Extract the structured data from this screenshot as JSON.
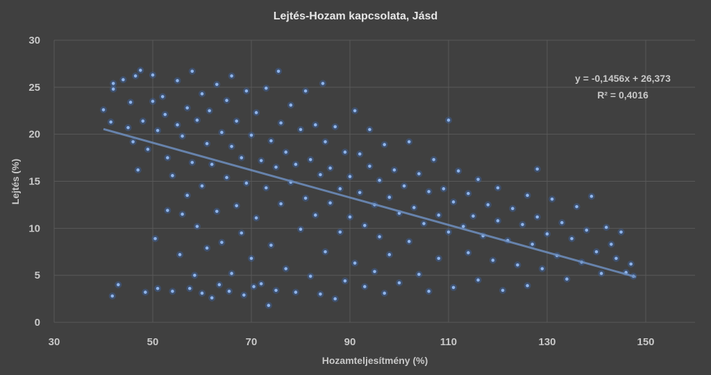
{
  "chart_data": {
    "type": "scatter",
    "title": "Lejtés-Hozam kapcsolata, Jásd",
    "xlabel": "Hozamteljesítmény (%)",
    "ylabel": "Lejtés (%)",
    "xlim": [
      30,
      160
    ],
    "ylim": [
      0,
      30
    ],
    "xticks": [
      "30",
      "50",
      "70",
      "90",
      "110",
      "130",
      "150"
    ],
    "yticks": [
      "0",
      "5",
      "10",
      "15",
      "20",
      "25",
      "30"
    ],
    "grid": true,
    "point_color": "#8fb4ea",
    "trendline": {
      "slope": -0.1456,
      "intercept": 26.373,
      "x_range": [
        40,
        148
      ],
      "color": "#6f8fbf",
      "equation": "y = -0,1456x + 26,373",
      "r2": "R² = 0,4016"
    },
    "points_sample": [
      [
        40,
        22.6
      ],
      [
        41.5,
        21.3
      ],
      [
        42,
        25.4
      ],
      [
        42,
        24.8
      ],
      [
        41.8,
        2.8
      ],
      [
        43,
        4
      ],
      [
        44,
        25.8
      ],
      [
        45,
        20.7
      ],
      [
        45.5,
        23.4
      ],
      [
        46,
        19.2
      ],
      [
        46.5,
        26.2
      ],
      [
        47,
        16.2
      ],
      [
        47.5,
        26.8
      ],
      [
        48,
        21.4
      ],
      [
        48.5,
        3.2
      ],
      [
        49,
        18.4
      ],
      [
        50,
        26.3
      ],
      [
        50,
        23.5
      ],
      [
        50.5,
        8.9
      ],
      [
        51,
        20.4
      ],
      [
        51,
        3.6
      ],
      [
        52,
        24
      ],
      [
        52.5,
        22.1
      ],
      [
        53,
        17.5
      ],
      [
        53,
        11.9
      ],
      [
        54,
        15.6
      ],
      [
        54,
        3.3
      ],
      [
        55,
        21
      ],
      [
        55,
        25.7
      ],
      [
        55.5,
        7.2
      ],
      [
        56,
        19.8
      ],
      [
        56,
        11.5
      ],
      [
        57,
        22.8
      ],
      [
        57,
        13.5
      ],
      [
        57.5,
        3.6
      ],
      [
        58,
        26.7
      ],
      [
        58,
        17
      ],
      [
        58.5,
        5
      ],
      [
        59,
        21.5
      ],
      [
        59,
        10.2
      ],
      [
        60,
        24.3
      ],
      [
        60,
        14.5
      ],
      [
        60,
        3.1
      ],
      [
        61,
        19
      ],
      [
        61,
        7.9
      ],
      [
        61.5,
        22.5
      ],
      [
        62,
        16.8
      ],
      [
        62,
        2.6
      ],
      [
        63,
        25.3
      ],
      [
        63,
        11.8
      ],
      [
        63.5,
        4
      ],
      [
        64,
        20.2
      ],
      [
        64,
        8.5
      ],
      [
        65,
        23.6
      ],
      [
        65,
        15.4
      ],
      [
        65.5,
        3.3
      ],
      [
        66,
        26.2
      ],
      [
        66,
        18.7
      ],
      [
        66,
        5.2
      ],
      [
        67,
        21.4
      ],
      [
        67,
        12.4
      ],
      [
        68,
        17.5
      ],
      [
        68,
        9.5
      ],
      [
        68.5,
        2.9
      ],
      [
        69,
        24.6
      ],
      [
        69,
        14.8
      ],
      [
        70,
        19.9
      ],
      [
        70,
        6.8
      ],
      [
        70.5,
        3.8
      ],
      [
        71,
        22.3
      ],
      [
        71,
        11.1
      ],
      [
        72,
        17.2
      ],
      [
        72,
        4.1
      ],
      [
        73,
        24.9
      ],
      [
        73,
        14.3
      ],
      [
        73.5,
        1.8
      ],
      [
        74,
        19.3
      ],
      [
        74,
        8.2
      ],
      [
        75,
        16.5
      ],
      [
        75,
        3.4
      ],
      [
        75.5,
        26.7
      ],
      [
        76,
        21.2
      ],
      [
        76,
        12.6
      ],
      [
        77,
        18.1
      ],
      [
        77,
        5.7
      ],
      [
        78,
        23.1
      ],
      [
        78,
        14.9
      ],
      [
        79,
        16.8
      ],
      [
        79,
        3.2
      ],
      [
        80,
        20.5
      ],
      [
        80,
        9.9
      ],
      [
        81,
        24.6
      ],
      [
        81,
        13.2
      ],
      [
        82,
        17.3
      ],
      [
        82,
        4.9
      ],
      [
        83,
        21
      ],
      [
        83,
        11.4
      ],
      [
        84,
        15.7
      ],
      [
        84,
        3
      ],
      [
        84.5,
        25.4
      ],
      [
        85,
        19.2
      ],
      [
        85,
        7.5
      ],
      [
        86,
        16.4
      ],
      [
        86,
        12.7
      ],
      [
        87,
        20.8
      ],
      [
        87,
        2.5
      ],
      [
        88,
        14.2
      ],
      [
        88,
        9.6
      ],
      [
        89,
        18.1
      ],
      [
        89,
        4.4
      ],
      [
        90,
        15.5
      ],
      [
        90,
        11.2
      ],
      [
        91,
        22.5
      ],
      [
        91,
        6.3
      ],
      [
        92,
        13.8
      ],
      [
        92,
        17.9
      ],
      [
        93,
        10.3
      ],
      [
        93,
        3.8
      ],
      [
        94,
        16.6
      ],
      [
        94,
        20.5
      ],
      [
        95,
        12.5
      ],
      [
        95,
        5.4
      ],
      [
        96,
        15.1
      ],
      [
        96,
        9.1
      ],
      [
        97,
        18.9
      ],
      [
        97,
        3.1
      ],
      [
        98,
        13.3
      ],
      [
        98,
        7.2
      ],
      [
        99,
        16.2
      ],
      [
        100,
        11.6
      ],
      [
        100,
        4.2
      ],
      [
        101,
        14.5
      ],
      [
        102,
        19.2
      ],
      [
        102,
        8.6
      ],
      [
        103,
        12.2
      ],
      [
        104,
        15.8
      ],
      [
        104,
        5.1
      ],
      [
        105,
        10.5
      ],
      [
        106,
        13.9
      ],
      [
        106,
        3.3
      ],
      [
        107,
        17.3
      ],
      [
        108,
        11.4
      ],
      [
        108,
        6.8
      ],
      [
        109,
        14.2
      ],
      [
        110,
        9.6
      ],
      [
        110,
        21.5
      ],
      [
        111,
        12.8
      ],
      [
        111,
        3.7
      ],
      [
        112,
        16.1
      ],
      [
        113,
        10.2
      ],
      [
        114,
        7.4
      ],
      [
        114,
        13.7
      ],
      [
        115,
        11.3
      ],
      [
        116,
        15.2
      ],
      [
        116,
        4.5
      ],
      [
        117,
        9.2
      ],
      [
        118,
        12.5
      ],
      [
        119,
        6.6
      ],
      [
        120,
        10.8
      ],
      [
        120,
        14.3
      ],
      [
        121,
        3.4
      ],
      [
        122,
        8.7
      ],
      [
        123,
        12.1
      ],
      [
        124,
        6.1
      ],
      [
        125,
        10.4
      ],
      [
        126,
        13.5
      ],
      [
        126,
        3.9
      ],
      [
        127,
        8.3
      ],
      [
        128,
        16.3
      ],
      [
        128,
        11.2
      ],
      [
        129,
        5.7
      ],
      [
        130,
        9.4
      ],
      [
        131,
        13.1
      ],
      [
        132,
        7.1
      ],
      [
        133,
        10.6
      ],
      [
        134,
        4.6
      ],
      [
        135,
        8.9
      ],
      [
        136,
        12.3
      ],
      [
        137,
        6.4
      ],
      [
        138,
        9.8
      ],
      [
        139,
        13.4
      ],
      [
        140,
        7.5
      ],
      [
        141,
        5.2
      ],
      [
        142,
        10.1
      ],
      [
        143,
        8.3
      ],
      [
        144,
        6.8
      ],
      [
        145,
        9.6
      ],
      [
        146,
        5.3
      ],
      [
        147,
        6.2
      ],
      [
        147.5,
        4.9
      ]
    ]
  }
}
